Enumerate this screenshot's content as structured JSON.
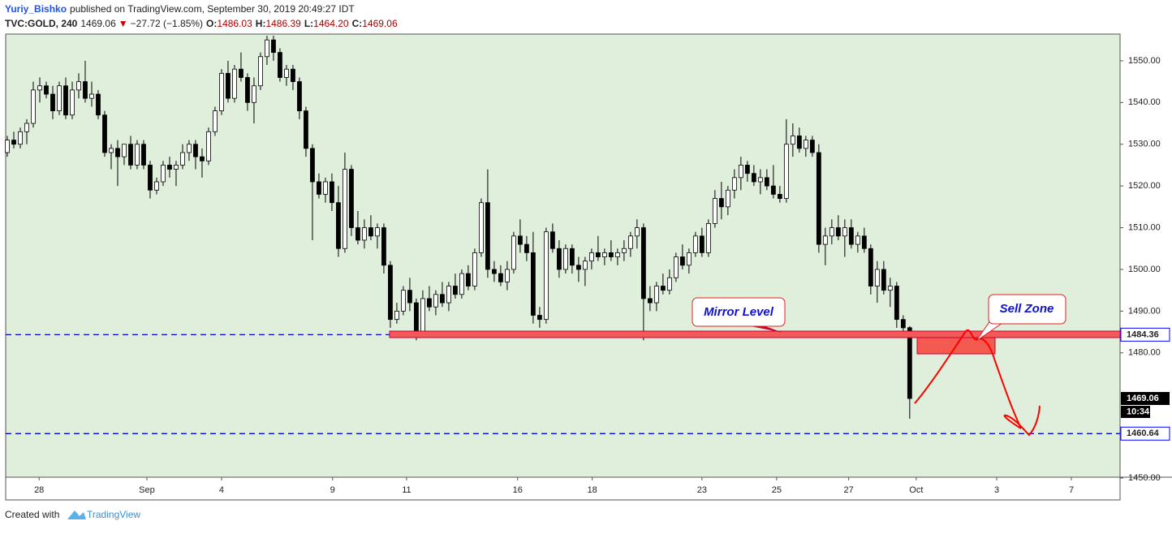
{
  "header": {
    "author": "Yuriy_Bishko",
    "published": "published on TradingView.com, September 30, 2019 20:49:27 IDT",
    "symbol": "TVC:GOLD, 240",
    "last": "1469.06",
    "arrow": "▼",
    "change": "−27.72 (−1.85%)",
    "o_label": "O:",
    "o": "1486.03",
    "h_label": "H:",
    "h": "1486.39",
    "l_label": "L:",
    "l": "1464.20",
    "c_label": "C:",
    "c": "1469.06"
  },
  "chart_data": {
    "type": "candlestick",
    "ohlc": [
      [
        1528,
        1532,
        1527,
        1531
      ],
      [
        1531,
        1533,
        1529,
        1530
      ],
      [
        1530,
        1534,
        1529,
        1533
      ],
      [
        1533,
        1536,
        1530,
        1535
      ],
      [
        1535,
        1545,
        1534,
        1543
      ],
      [
        1543,
        1546,
        1540,
        1544
      ],
      [
        1544,
        1545,
        1541,
        1542
      ],
      [
        1542,
        1544,
        1536,
        1538
      ],
      [
        1538,
        1545,
        1537,
        1544
      ],
      [
        1544,
        1546,
        1536,
        1537
      ],
      [
        1537,
        1545,
        1536,
        1543
      ],
      [
        1543,
        1547,
        1541,
        1545
      ],
      [
        1545,
        1550,
        1540,
        1541
      ],
      [
        1541,
        1545,
        1539,
        1542
      ],
      [
        1542,
        1543,
        1536,
        1537
      ],
      [
        1537,
        1538,
        1527,
        1528
      ],
      [
        1528,
        1530,
        1524,
        1529
      ],
      [
        1529,
        1531,
        1520,
        1527
      ],
      [
        1527,
        1530,
        1525,
        1530
      ],
      [
        1530,
        1532,
        1524,
        1525
      ],
      [
        1525,
        1531,
        1524,
        1530
      ],
      [
        1530,
        1531,
        1524,
        1525
      ],
      [
        1525,
        1526,
        1517,
        1519
      ],
      [
        1519,
        1522,
        1518,
        1521
      ],
      [
        1521,
        1526,
        1520,
        1525
      ],
      [
        1525,
        1527,
        1522,
        1524
      ],
      [
        1524,
        1526,
        1520,
        1525
      ],
      [
        1525,
        1530,
        1524,
        1528
      ],
      [
        1528,
        1531,
        1526,
        1530
      ],
      [
        1530,
        1531,
        1524,
        1527
      ],
      [
        1527,
        1529,
        1522,
        1526
      ],
      [
        1526,
        1534,
        1525,
        1533
      ],
      [
        1533,
        1539,
        1532,
        1538
      ],
      [
        1538,
        1548,
        1537,
        1547
      ],
      [
        1547,
        1550,
        1540,
        1541
      ],
      [
        1541,
        1549,
        1540,
        1548
      ],
      [
        1548,
        1552,
        1545,
        1546
      ],
      [
        1546,
        1547,
        1538,
        1540
      ],
      [
        1540,
        1546,
        1535,
        1544
      ],
      [
        1544,
        1552,
        1543,
        1551
      ],
      [
        1551,
        1556,
        1549,
        1555
      ],
      [
        1555,
        1556,
        1550,
        1552
      ],
      [
        1552,
        1553,
        1545,
        1546
      ],
      [
        1546,
        1549,
        1544,
        1548
      ],
      [
        1548,
        1549,
        1543,
        1545
      ],
      [
        1545,
        1546,
        1536,
        1538
      ],
      [
        1538,
        1539,
        1527,
        1529
      ],
      [
        1529,
        1530,
        1507,
        1521
      ],
      [
        1521,
        1523,
        1517,
        1518
      ],
      [
        1518,
        1522,
        1516,
        1521
      ],
      [
        1521,
        1523,
        1514,
        1516
      ],
      [
        1516,
        1520,
        1503,
        1505
      ],
      [
        1505,
        1528,
        1504,
        1524
      ],
      [
        1524,
        1525,
        1508,
        1510
      ],
      [
        1510,
        1514,
        1506,
        1507
      ],
      [
        1507,
        1512,
        1505,
        1510
      ],
      [
        1510,
        1513,
        1507,
        1508
      ],
      [
        1508,
        1511,
        1505,
        1510
      ],
      [
        1510,
        1511,
        1499,
        1501
      ],
      [
        1501,
        1502,
        1486,
        1488
      ],
      [
        1488,
        1492,
        1487,
        1490
      ],
      [
        1490,
        1496,
        1489,
        1495
      ],
      [
        1495,
        1498,
        1490,
        1492
      ],
      [
        1492,
        1493,
        1483,
        1485
      ],
      [
        1485,
        1495,
        1484,
        1493
      ],
      [
        1493,
        1496,
        1490,
        1491
      ],
      [
        1491,
        1495,
        1489,
        1494
      ],
      [
        1494,
        1497,
        1491,
        1492
      ],
      [
        1492,
        1497,
        1490,
        1496
      ],
      [
        1496,
        1499,
        1493,
        1494
      ],
      [
        1494,
        1500,
        1493,
        1499
      ],
      [
        1499,
        1501,
        1495,
        1496
      ],
      [
        1496,
        1505,
        1495,
        1504
      ],
      [
        1504,
        1517,
        1503,
        1516
      ],
      [
        1516,
        1524,
        1498,
        1500
      ],
      [
        1500,
        1502,
        1497,
        1499
      ],
      [
        1499,
        1501,
        1496,
        1497
      ],
      [
        1497,
        1502,
        1495,
        1500
      ],
      [
        1500,
        1509,
        1499,
        1508
      ],
      [
        1508,
        1512,
        1504,
        1506
      ],
      [
        1506,
        1508,
        1502,
        1504
      ],
      [
        1504,
        1509,
        1487,
        1489
      ],
      [
        1489,
        1491,
        1486,
        1488
      ],
      [
        1488,
        1510,
        1487,
        1509
      ],
      [
        1509,
        1511,
        1504,
        1505
      ],
      [
        1505,
        1507,
        1498,
        1500
      ],
      [
        1500,
        1506,
        1499,
        1505
      ],
      [
        1505,
        1506,
        1499,
        1501
      ],
      [
        1501,
        1503,
        1497,
        1500
      ],
      [
        1500,
        1503,
        1496,
        1502
      ],
      [
        1502,
        1505,
        1500,
        1504
      ],
      [
        1504,
        1508,
        1502,
        1503
      ],
      [
        1503,
        1505,
        1501,
        1504
      ],
      [
        1504,
        1507,
        1502,
        1503
      ],
      [
        1503,
        1505,
        1501,
        1504
      ],
      [
        1504,
        1507,
        1502,
        1505
      ],
      [
        1505,
        1509,
        1503,
        1508
      ],
      [
        1508,
        1512,
        1505,
        1510
      ],
      [
        1510,
        1511,
        1483,
        1493
      ],
      [
        1493,
        1496,
        1490,
        1492
      ],
      [
        1492,
        1497,
        1490,
        1496
      ],
      [
        1496,
        1499,
        1494,
        1495
      ],
      [
        1495,
        1500,
        1494,
        1498
      ],
      [
        1498,
        1504,
        1497,
        1503
      ],
      [
        1503,
        1506,
        1500,
        1501
      ],
      [
        1501,
        1505,
        1499,
        1504
      ],
      [
        1504,
        1509,
        1503,
        1508
      ],
      [
        1508,
        1510,
        1503,
        1504
      ],
      [
        1504,
        1512,
        1503,
        1511
      ],
      [
        1511,
        1519,
        1510,
        1517
      ],
      [
        1517,
        1521,
        1512,
        1515
      ],
      [
        1515,
        1520,
        1513,
        1519
      ],
      [
        1519,
        1524,
        1517,
        1522
      ],
      [
        1522,
        1527,
        1519,
        1525
      ],
      [
        1525,
        1526,
        1521,
        1523
      ],
      [
        1523,
        1525,
        1520,
        1521
      ],
      [
        1521,
        1524,
        1518,
        1522
      ],
      [
        1522,
        1524,
        1519,
        1520
      ],
      [
        1520,
        1525,
        1517,
        1518
      ],
      [
        1518,
        1520,
        1516,
        1517
      ],
      [
        1517,
        1536,
        1516,
        1530
      ],
      [
        1530,
        1535,
        1527,
        1532
      ],
      [
        1532,
        1534,
        1528,
        1529
      ],
      [
        1529,
        1532,
        1527,
        1531
      ],
      [
        1531,
        1532,
        1527,
        1528
      ],
      [
        1528,
        1530,
        1504,
        1506
      ],
      [
        1506,
        1510,
        1501,
        1508
      ],
      [
        1508,
        1512,
        1506,
        1510
      ],
      [
        1510,
        1513,
        1507,
        1508
      ],
      [
        1508,
        1512,
        1503,
        1510
      ],
      [
        1510,
        1512,
        1505,
        1506
      ],
      [
        1506,
        1509,
        1504,
        1508
      ],
      [
        1508,
        1510,
        1504,
        1505
      ],
      [
        1505,
        1506,
        1494,
        1496
      ],
      [
        1496,
        1502,
        1492,
        1500
      ],
      [
        1500,
        1502,
        1494,
        1495
      ],
      [
        1495,
        1498,
        1491,
        1496
      ],
      [
        1496,
        1497,
        1486,
        1488
      ],
      [
        1488,
        1489,
        1485,
        1486
      ],
      [
        1486.03,
        1486.39,
        1464.2,
        1469.06
      ]
    ],
    "up_color": "#ffffff",
    "down_color": "#000000",
    "xlim": [
      -0.25,
      171.4
    ],
    "xticks": [
      {
        "value": 4.9,
        "label": "28"
      },
      {
        "value": 21.5,
        "label": "Sep"
      },
      {
        "value": 33,
        "label": "4"
      },
      {
        "value": 50.1,
        "label": "9"
      },
      {
        "value": 61.5,
        "label": "11"
      },
      {
        "value": 78.6,
        "label": "16"
      },
      {
        "value": 90.1,
        "label": "18"
      },
      {
        "value": 107,
        "label": "23"
      },
      {
        "value": 118.5,
        "label": "25"
      },
      {
        "value": 129.6,
        "label": "27"
      },
      {
        "value": 140,
        "label": "Oct"
      },
      {
        "value": 152.4,
        "label": "3"
      },
      {
        "value": 163.9,
        "label": "7"
      }
    ],
    "ylim": [
      1450,
      1556.4
    ],
    "yticks": [
      {
        "value": 1450,
        "label": "1450.00"
      },
      {
        "value": 1480,
        "label": "1480.00"
      },
      {
        "value": 1490,
        "label": "1490.00"
      },
      {
        "value": 1500,
        "label": "1500.00"
      },
      {
        "value": 1510,
        "label": "1510.00"
      },
      {
        "value": 1520,
        "label": "1520.00"
      },
      {
        "value": 1530,
        "label": "1530.00"
      },
      {
        "value": 1540,
        "label": "1540.00"
      },
      {
        "value": 1550,
        "label": "1550.00"
      }
    ],
    "levels": [
      1484.36,
      1460.64
    ],
    "level_color": "#0000ff",
    "last_price": 1469.06,
    "countdown": "10:34",
    "annotations": [
      "Mirror Level",
      "Sell Zone"
    ]
  },
  "footer": {
    "created": "Created with",
    "brand": "TradingView"
  }
}
